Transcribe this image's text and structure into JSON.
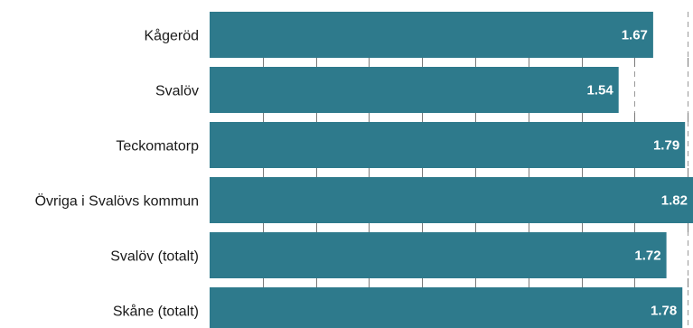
{
  "chart_data": {
    "type": "bar",
    "orientation": "horizontal",
    "categories": [
      "Kågeröd",
      "Svalöv",
      "Teckomatorp",
      "Övriga i Svalövs kommun",
      "Svalöv (totalt)",
      "Skåne (totalt)"
    ],
    "values": [
      1.67,
      1.54,
      1.79,
      1.82,
      1.72,
      1.78
    ],
    "value_labels": [
      "1.67",
      "1.54",
      "1.79",
      "1.82",
      "1.72",
      "1.78"
    ],
    "xlim": [
      0,
      1.82
    ],
    "grid": true,
    "legend": "none",
    "title": "",
    "xlabel": "",
    "ylabel": "",
    "colors": {
      "bar": "#2e7a8c",
      "value_text": "#ffffff",
      "grid": "#9a9a9a"
    }
  }
}
